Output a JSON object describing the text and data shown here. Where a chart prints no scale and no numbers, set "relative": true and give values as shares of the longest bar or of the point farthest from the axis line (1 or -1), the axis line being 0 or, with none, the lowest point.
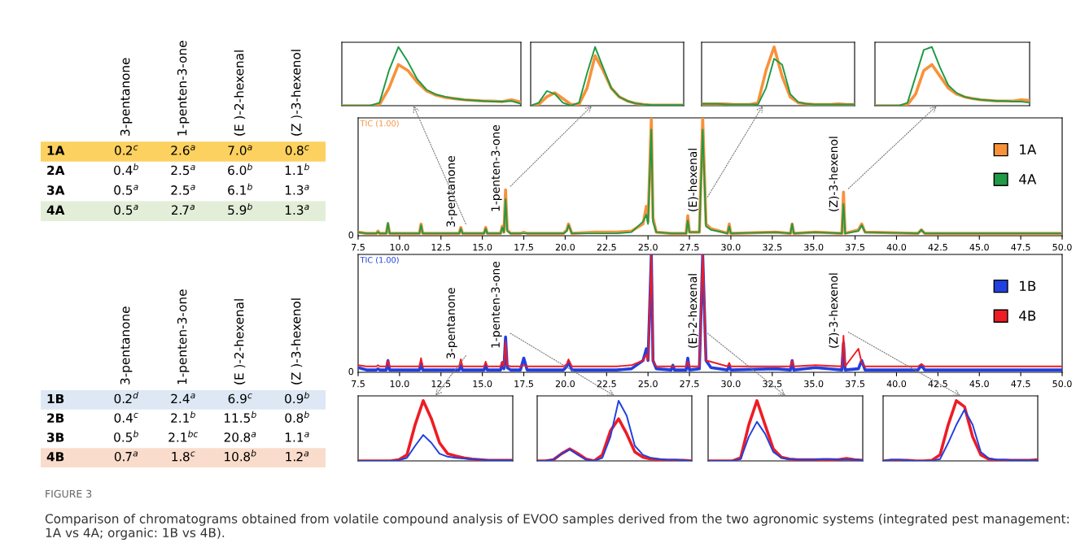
{
  "chart_data": [
    {
      "type": "heatmap",
      "categories": [
        "3-pentanone",
        "1-penten-3-one",
        "(E )-2-hexenal",
        "(Z )-3-hexenol"
      ],
      "y_categories": [
        "1A",
        "2A",
        "3A",
        "4A"
      ],
      "cells": [
        [
          0.2,
          2.6,
          7.0,
          0.8
        ],
        [
          0.4,
          2.5,
          6.0,
          1.1
        ],
        [
          0.5,
          2.5,
          6.1,
          1.3
        ],
        [
          0.5,
          2.7,
          5.9,
          1.3
        ]
      ],
      "cell_labels": [
        [
          "0.2$^{c}$",
          "2.6$^{a}$",
          "7.0$^{a}$",
          "0.8$^{c}$"
        ],
        [
          "0.4$^{b}$",
          "2.5$^{a}$",
          "6.0$^{b}$",
          "1.1$^{b}$"
        ],
        [
          "0.5$^{a}$",
          "2.5$^{a}$",
          "6.1$^{b}$",
          "1.3$^{a}$"
        ],
        [
          "0.5$^{a}$",
          "2.7$^{a}$",
          "5.9$^{b}$",
          "1.3$^{a}$"
        ]
      ],
      "colors": [
        "#fcd15f",
        null,
        null,
        "#e3eed8"
      ],
      "annotations": [
        "FIGURE 3",
        "Comparison of chromatograms obtained from volatile compound analysis of EVOO samples derived from the two agronomic systems (integrated pest management: 1A vs 4A; organic: 1B vs 4B)."
      ]
    },
    {
      "type": "heatmap",
      "categories": [
        "3-pentanone",
        "1-penten-3-one",
        "(E )-2-hexenal",
        "(Z )-3-hexenol"
      ],
      "y_categories": [
        "1B",
        "2B",
        "3B",
        "4B"
      ],
      "cells": [
        [
          0.2,
          2.4,
          6.9,
          0.9
        ],
        [
          0.4,
          2.1,
          11.5,
          0.8
        ],
        [
          0.5,
          2.1,
          20.8,
          1.1
        ],
        [
          0.7,
          1.8,
          10.8,
          1.2
        ]
      ],
      "cell_labels": [
        [
          "0.2$^{d}$",
          "2.4$^{a}$",
          "6.9$^{c}$",
          "0.9$^{b}$"
        ],
        [
          "0.4$^{c}$",
          "2.1$^{b}$",
          "11.5$^{b}$",
          "0.8$^{b}$"
        ],
        [
          "0.5$^{b}$",
          "2.1$^{bc}$",
          "20.8$^{a}$",
          "1.1$^{a}$"
        ],
        [
          "0.7$^{a}$",
          "1.8$^{c}$",
          "10.8$^{b}$",
          "1.2$^{a}$"
        ]
      ],
      "colors": [
        "#dde8f4",
        null,
        null,
        "#f9dccb"
      ]
    },
    {
      "type": "line",
      "relative": true,
      "legend": "top right",
      "x": [
        7.5,
        8.0,
        8.6,
        8.7,
        8.8,
        9.2,
        9.3,
        9.4,
        11.2,
        11.3,
        11.4,
        12.5,
        13.6,
        13.7,
        13.8,
        15.1,
        15.2,
        15.3,
        16.1,
        16.2,
        16.3,
        16.4,
        16.5,
        16.7,
        17.3,
        17.5,
        17.7,
        19.9,
        20.1,
        20.2,
        20.4,
        21.8,
        23.1,
        24.0,
        24.7,
        24.9,
        25.0,
        25.2,
        25.3,
        25.5,
        26.4,
        26.5,
        26.6,
        27.3,
        27.4,
        27.5,
        28.1,
        28.3,
        28.5,
        28.8,
        29.8,
        29.9,
        30.0,
        32.7,
        33.6,
        33.7,
        33.8,
        35.1,
        36.7,
        36.8,
        36.9,
        37.7,
        37.9,
        38.1,
        41.3,
        41.5,
        41.7,
        45,
        50
      ],
      "series": [
        {
          "name": "1A",
          "color": "#f7923a",
          "values": [
            0.03,
            0.02,
            0.02,
            0.04,
            0.02,
            0.02,
            0.1,
            0.02,
            0.02,
            0.1,
            0.02,
            0.02,
            0.02,
            0.07,
            0.02,
            0.02,
            0.07,
            0.02,
            0.02,
            0.08,
            0.03,
            0.39,
            0.05,
            0.02,
            0.02,
            0.03,
            0.02,
            0.02,
            0.05,
            0.1,
            0.02,
            0.03,
            0.03,
            0.04,
            0.1,
            0.25,
            0.12,
            1,
            0.15,
            0.03,
            0.02,
            0.02,
            0.02,
            0.02,
            0.17,
            0.03,
            0.03,
            1,
            0.1,
            0.06,
            0.02,
            0.1,
            0.02,
            0.03,
            0.02,
            0.1,
            0.02,
            0.03,
            0.02,
            0.37,
            0.02,
            0.05,
            0.1,
            0.03,
            0.02,
            0.05,
            0.02,
            0.02,
            0.02
          ]
        },
        {
          "name": "4A",
          "color": "#1f9a46",
          "values": [
            0.03,
            0.02,
            0.02,
            0.03,
            0.02,
            0.02,
            0.11,
            0.02,
            0.02,
            0.09,
            0.02,
            0.02,
            0.02,
            0.06,
            0.02,
            0.02,
            0.06,
            0.02,
            0.02,
            0.07,
            0.03,
            0.31,
            0.04,
            0.02,
            0.02,
            0.02,
            0.02,
            0.02,
            0.04,
            0.09,
            0.02,
            0.02,
            0.02,
            0.03,
            0.12,
            0.18,
            0.1,
            0.9,
            0.12,
            0.03,
            0.02,
            0.02,
            0.02,
            0.02,
            0.13,
            0.03,
            0.03,
            0.9,
            0.08,
            0.05,
            0.02,
            0.08,
            0.02,
            0.03,
            0.02,
            0.1,
            0.02,
            0.03,
            0.02,
            0.27,
            0.02,
            0.04,
            0.09,
            0.03,
            0.02,
            0.05,
            0.02,
            0.02,
            0.02
          ]
        }
      ],
      "xlim": [
        7.5,
        50
      ],
      "xticks": [
        {
          "value": 7.5,
          "label": "7.5"
        },
        {
          "value": 10,
          "label": "10.0"
        },
        {
          "value": 12.5,
          "label": "12.5"
        },
        {
          "value": 15,
          "label": "15.0"
        },
        {
          "value": 17.5,
          "label": "17.5"
        },
        {
          "value": 20,
          "label": "20.0"
        },
        {
          "value": 22.5,
          "label": "22.5"
        },
        {
          "value": 25,
          "label": "25.0"
        },
        {
          "value": 27.5,
          "label": "27.5"
        },
        {
          "value": 30,
          "label": "30.0"
        },
        {
          "value": 32.5,
          "label": "32.5"
        },
        {
          "value": 35,
          "label": "35.0"
        },
        {
          "value": 37.5,
          "label": "37.5"
        },
        {
          "value": 40,
          "label": "40.0"
        },
        {
          "value": 42.5,
          "label": "42.5"
        },
        {
          "value": 45,
          "label": "45.0"
        },
        {
          "value": 47.5,
          "label": "47.5"
        },
        {
          "value": 50,
          "label": "50.0"
        }
      ],
      "annotations": [
        "TIC (1.00)",
        "0",
        {
          "text": "3-pentanone",
          "x": 13.7,
          "y": 0.07
        },
        {
          "text": "1-penten-3-one",
          "x": 16.4,
          "y": 0.39
        },
        {
          "text": "(E)-hexenal",
          "x": 28.3,
          "y": 0.3
        },
        {
          "text": "(Z)-3-hexenol",
          "x": 36.8,
          "y": 0.37
        }
      ]
    },
    {
      "type": "line",
      "relative": true,
      "legend": "top right",
      "x": [
        7.5,
        8.0,
        8.6,
        8.7,
        8.8,
        9.2,
        9.3,
        9.4,
        11.2,
        11.3,
        11.4,
        12.5,
        13.6,
        13.7,
        13.8,
        15.1,
        15.2,
        15.3,
        16.1,
        16.2,
        16.3,
        16.4,
        16.5,
        16.7,
        17.3,
        17.5,
        17.7,
        19.9,
        20.1,
        20.2,
        20.4,
        21.8,
        23.1,
        24.0,
        24.7,
        24.9,
        25.0,
        25.2,
        25.3,
        25.5,
        26.4,
        26.5,
        26.6,
        27.3,
        27.4,
        27.5,
        28.1,
        28.3,
        28.5,
        28.8,
        29.8,
        29.9,
        30.0,
        32.7,
        33.6,
        33.7,
        33.8,
        35.1,
        36.7,
        36.8,
        36.9,
        37.7,
        37.9,
        38.1,
        41.3,
        41.5,
        41.7,
        45,
        50
      ],
      "series": [
        {
          "name": "1B",
          "color": "#2040e0",
          "values": [
            0.04,
            0.02,
            0.02,
            0.03,
            0.02,
            0.02,
            0.1,
            0.02,
            0.02,
            0.08,
            0.02,
            0.02,
            0.02,
            0.06,
            0.02,
            0.02,
            0.06,
            0.02,
            0.02,
            0.08,
            0.03,
            0.3,
            0.04,
            0.02,
            0.02,
            0.12,
            0.02,
            0.02,
            0.05,
            0.09,
            0.02,
            0.02,
            0.02,
            0.03,
            0.1,
            0.2,
            0.1,
            1,
            0.1,
            0.03,
            0.02,
            0.06,
            0.02,
            0.02,
            0.12,
            0.02,
            0.03,
            1,
            0.1,
            0.04,
            0.02,
            0.05,
            0.02,
            0.03,
            0.02,
            0.1,
            0.02,
            0.04,
            0.02,
            0.25,
            0.02,
            0.03,
            0.1,
            0.02,
            0.02,
            0.06,
            0.02,
            0.02,
            0.02
          ]
        },
        {
          "name": "4B",
          "color": "#ee1c25",
          "values": [
            0.06,
            0.05,
            0.05,
            0.06,
            0.05,
            0.05,
            0.1,
            0.05,
            0.05,
            0.12,
            0.05,
            0.05,
            0.05,
            0.11,
            0.05,
            0.05,
            0.09,
            0.05,
            0.05,
            0.09,
            0.05,
            0.26,
            0.06,
            0.05,
            0.05,
            0.06,
            0.05,
            0.05,
            0.07,
            0.11,
            0.05,
            0.05,
            0.05,
            0.06,
            0.1,
            0.15,
            0.1,
            1,
            0.1,
            0.05,
            0.05,
            0.05,
            0.05,
            0.05,
            0.09,
            0.05,
            0.05,
            1,
            0.1,
            0.09,
            0.05,
            0.08,
            0.05,
            0.05,
            0.05,
            0.1,
            0.05,
            0.06,
            0.05,
            0.31,
            0.05,
            0.2,
            0.08,
            0.05,
            0.05,
            0.07,
            0.05,
            0.05,
            0.05
          ]
        }
      ],
      "xlim": [
        7.5,
        50
      ],
      "xticks": [
        {
          "value": 7.5,
          "label": "7.5"
        },
        {
          "value": 10,
          "label": "10.0"
        },
        {
          "value": 12.5,
          "label": "12.5"
        },
        {
          "value": 15,
          "label": "15.0"
        },
        {
          "value": 17.5,
          "label": "17.5"
        },
        {
          "value": 20,
          "label": "20.0"
        },
        {
          "value": 22.5,
          "label": "22.5"
        },
        {
          "value": 25,
          "label": "25.0"
        },
        {
          "value": 27.5,
          "label": "27.5"
        },
        {
          "value": 30,
          "label": "30.0"
        },
        {
          "value": 32.5,
          "label": "32.5"
        },
        {
          "value": 35,
          "label": "35.0"
        },
        {
          "value": 37.5,
          "label": "37.5"
        },
        {
          "value": 40,
          "label": "40.0"
        },
        {
          "value": 42.5,
          "label": "42.5"
        },
        {
          "value": 45,
          "label": "45.0"
        },
        {
          "value": 47.5,
          "label": "47.5"
        },
        {
          "value": 50,
          "label": "50.0"
        }
      ],
      "annotations": [
        "TIC (1.00)",
        "0",
        {
          "text": "3-pentanone",
          "x": 13.7,
          "y": 0.11
        },
        {
          "text": "1-penten-3-one",
          "x": 16.4,
          "y": 0.3
        },
        {
          "text": "(E)-2-hexenal",
          "x": 28.3,
          "y": 0.3
        },
        {
          "text": "(Z)-3-hexenol",
          "x": 36.8,
          "y": 0.31
        }
      ]
    },
    {
      "type": "line",
      "relative": true,
      "tick_labels": false,
      "categories": [
        null,
        null,
        null,
        null,
        null,
        null,
        null,
        null,
        null,
        null,
        null,
        null,
        null,
        null,
        null,
        null,
        null,
        null,
        null,
        null
      ],
      "series": [
        {
          "color": "#f7923a",
          "values": [
            0,
            0,
            0,
            0,
            0.02,
            0.3,
            0.7,
            0.6,
            0.4,
            0.25,
            0.18,
            0.14,
            0.12,
            0.1,
            0.09,
            0.08,
            0.08,
            0.07,
            0.1,
            0.06
          ]
        },
        {
          "color": "#1f9a46",
          "values": [
            0,
            0,
            0,
            0,
            0.05,
            0.6,
            1,
            0.75,
            0.45,
            0.27,
            0.19,
            0.15,
            0.12,
            0.1,
            0.09,
            0.08,
            0.07,
            0.07,
            0.08,
            0.03
          ]
        }
      ]
    },
    {
      "type": "line",
      "relative": true,
      "tick_labels": false,
      "categories": [
        null,
        null,
        null,
        null,
        null,
        null,
        null,
        null,
        null,
        null,
        null,
        null,
        null,
        null,
        null,
        null,
        null,
        null,
        null,
        null
      ],
      "series": [
        {
          "color": "#f7923a",
          "values": [
            0,
            0.02,
            0.15,
            0.22,
            0.12,
            0.02,
            0.02,
            0.3,
            0.85,
            0.6,
            0.3,
            0.15,
            0.08,
            0.04,
            0.02,
            0.01,
            0.01,
            0.01,
            0.01,
            0.01
          ]
        },
        {
          "color": "#1f9a46",
          "values": [
            0,
            0.05,
            0.25,
            0.2,
            0.05,
            0,
            0.05,
            0.55,
            1,
            0.65,
            0.3,
            0.15,
            0.08,
            0.04,
            0.02,
            0.01,
            0.01,
            0.01,
            0.01,
            0.01
          ]
        }
      ]
    },
    {
      "type": "line",
      "relative": true,
      "tick_labels": false,
      "categories": [
        null,
        null,
        null,
        null,
        null,
        null,
        null,
        null,
        null,
        null,
        null,
        null,
        null,
        null,
        null,
        null,
        null,
        null,
        null,
        null
      ],
      "series": [
        {
          "color": "#f7923a",
          "values": [
            0.03,
            0.03,
            0.03,
            0.03,
            0.02,
            0.02,
            0.02,
            0.05,
            0.6,
            1,
            0.5,
            0.15,
            0.05,
            0.03,
            0.02,
            0.02,
            0.02,
            0.03,
            0.02,
            0.02
          ]
        },
        {
          "color": "#1f9a46",
          "values": [
            0.03,
            0.03,
            0.03,
            0.02,
            0.02,
            0.02,
            0.02,
            0.02,
            0.3,
            0.8,
            0.7,
            0.2,
            0.06,
            0.03,
            0.02,
            0.02,
            0.02,
            0.02,
            0.02,
            0.02
          ]
        }
      ]
    },
    {
      "type": "line",
      "relative": true,
      "tick_labels": false,
      "categories": [
        null,
        null,
        null,
        null,
        null,
        null,
        null,
        null,
        null,
        null,
        null,
        null,
        null,
        null,
        null,
        null,
        null,
        null,
        null,
        null
      ],
      "series": [
        {
          "color": "#f7923a",
          "values": [
            0,
            0,
            0,
            0,
            0.02,
            0.2,
            0.6,
            0.7,
            0.5,
            0.3,
            0.2,
            0.15,
            0.12,
            0.1,
            0.09,
            0.08,
            0.08,
            0.08,
            0.1,
            0.09
          ]
        },
        {
          "color": "#1f9a46",
          "values": [
            0,
            0,
            0,
            0,
            0.05,
            0.5,
            0.95,
            1,
            0.65,
            0.35,
            0.22,
            0.15,
            0.12,
            0.1,
            0.09,
            0.08,
            0.08,
            0.07,
            0.07,
            0.05
          ]
        }
      ]
    },
    {
      "type": "line",
      "relative": true,
      "tick_labels": false,
      "categories": [
        null,
        null,
        null,
        null,
        null,
        null,
        null,
        null,
        null,
        null,
        null,
        null,
        null,
        null,
        null,
        null,
        null,
        null,
        null,
        null
      ],
      "series": [
        {
          "color": "#ee1c25",
          "values": [
            0,
            0,
            0,
            0,
            0,
            0.02,
            0.1,
            0.6,
            1,
            0.7,
            0.3,
            0.12,
            0.08,
            0.05,
            0.03,
            0.02,
            0.01,
            0.01,
            0.01,
            0.01
          ]
        },
        {
          "color": "#2040e0",
          "values": [
            0,
            0,
            0,
            0,
            0,
            0.01,
            0.05,
            0.25,
            0.43,
            0.3,
            0.12,
            0.07,
            0.05,
            0.04,
            0.03,
            0.02,
            0.01,
            0.01,
            0.01,
            0.01
          ]
        }
      ]
    },
    {
      "type": "line",
      "relative": true,
      "tick_labels": false,
      "categories": [
        null,
        null,
        null,
        null,
        null,
        null,
        null,
        null,
        null,
        null,
        null,
        null,
        null,
        null,
        null,
        null,
        null,
        null,
        null,
        null
      ],
      "series": [
        {
          "color": "#ee1c25",
          "values": [
            0,
            0,
            0.02,
            0.12,
            0.2,
            0.12,
            0.03,
            0,
            0.1,
            0.5,
            0.7,
            0.45,
            0.15,
            0.06,
            0.03,
            0.02,
            0.01,
            0.01,
            0.01,
            0
          ]
        },
        {
          "color": "#2040e0",
          "values": [
            0,
            0,
            0.02,
            0.12,
            0.19,
            0.1,
            0.02,
            0,
            0.05,
            0.4,
            1,
            0.75,
            0.25,
            0.1,
            0.05,
            0.03,
            0.02,
            0.02,
            0.01,
            0
          ]
        }
      ]
    },
    {
      "type": "line",
      "relative": true,
      "tick_labels": false,
      "categories": [
        null,
        null,
        null,
        null,
        null,
        null,
        null,
        null,
        null,
        null,
        null,
        null,
        null,
        null,
        null,
        null,
        null,
        null,
        null,
        null
      ],
      "series": [
        {
          "color": "#ee1c25",
          "values": [
            0,
            0,
            0,
            0,
            0.05,
            0.6,
            1,
            0.6,
            0.2,
            0.06,
            0.03,
            0.02,
            0.02,
            0.02,
            0.02,
            0.02,
            0.02,
            0.04,
            0.02,
            0.01
          ]
        },
        {
          "color": "#2040e0",
          "values": [
            0,
            0,
            0,
            0,
            0.03,
            0.4,
            0.65,
            0.45,
            0.15,
            0.05,
            0.03,
            0.02,
            0.02,
            0.02,
            0.03,
            0.03,
            0.02,
            0.02,
            0.02,
            0.01
          ]
        }
      ]
    },
    {
      "type": "line",
      "relative": true,
      "tick_labels": false,
      "categories": [
        null,
        null,
        null,
        null,
        null,
        null,
        null,
        null,
        null,
        null,
        null,
        null,
        null,
        null,
        null,
        null,
        null,
        null,
        null,
        null
      ],
      "series": [
        {
          "color": "#ee1c25",
          "values": [
            0,
            0.01,
            0.01,
            0.01,
            0,
            0,
            0.01,
            0.1,
            0.6,
            1,
            0.9,
            0.4,
            0.1,
            0.03,
            0.01,
            0.01,
            0.01,
            0.01,
            0.01,
            0.02
          ]
        },
        {
          "color": "#2040e0",
          "values": [
            0,
            0.02,
            0.02,
            0.01,
            0,
            0,
            0,
            0.03,
            0.3,
            0.6,
            0.85,
            0.6,
            0.15,
            0.04,
            0.02,
            0.02,
            0.01,
            0.01,
            0.01,
            0.01
          ]
        }
      ]
    }
  ]
}
